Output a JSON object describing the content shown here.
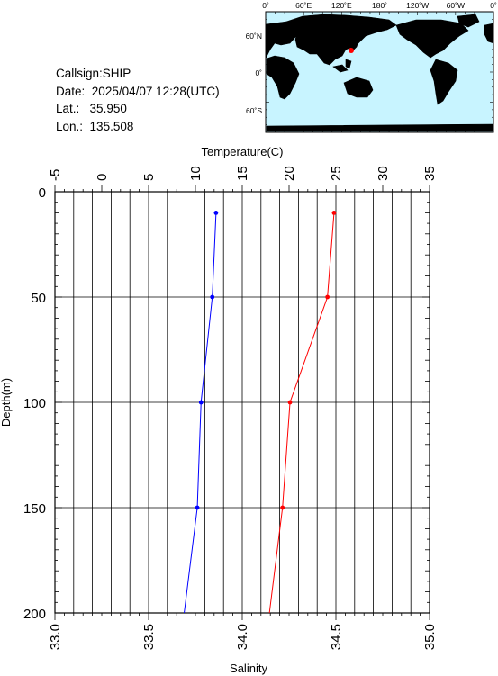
{
  "station": {
    "callsign_label": "Callsign:",
    "callsign": "SHIP",
    "date_label": "Date:",
    "date": "2025/04/07 12:28(UTC)",
    "lat_label": "Lat.:",
    "lat": "35.950",
    "lon_label": "Lon.:",
    "lon": "135.508"
  },
  "map": {
    "lon_labels": [
      "0˚",
      "60˚E",
      "120˚E",
      "180˚",
      "120˚W",
      "60˚W",
      "0˚"
    ],
    "lat_labels": [
      "60˚N",
      "0˚",
      "60˚S"
    ],
    "colors": {
      "ocean": "#c8f4ff",
      "land": "#c0c0c0",
      "marker": "#ff0000"
    }
  },
  "chart_data": {
    "type": "line",
    "y": [
      10,
      50,
      100,
      150,
      200
    ],
    "ylabel": "Depth(m)",
    "yticks": [
      "0",
      "50",
      "100",
      "150",
      "200"
    ],
    "ylim": [
      0,
      200
    ],
    "y_inverted": true,
    "grid": true,
    "series": [
      {
        "axis": "bottom",
        "color": "#0000ff",
        "values": [
          33.86,
          33.84,
          33.78,
          33.76,
          33.69
        ]
      },
      {
        "axis": "top",
        "color": "#ff0000",
        "values": [
          24.8,
          24.1,
          20.1,
          19.3,
          17.9
        ]
      }
    ],
    "top_axis": {
      "label": "Temperature(C)",
      "range": [
        -5,
        35
      ],
      "ticks": [
        "-5",
        "0",
        "5",
        "10",
        "15",
        "20",
        "25",
        "30",
        "35"
      ]
    },
    "bottom_axis": {
      "label": "Salinity",
      "range": [
        33.0,
        35.0
      ],
      "ticks": [
        "33.0",
        "33.5",
        "34.0",
        "34.5",
        "35.0"
      ]
    }
  }
}
